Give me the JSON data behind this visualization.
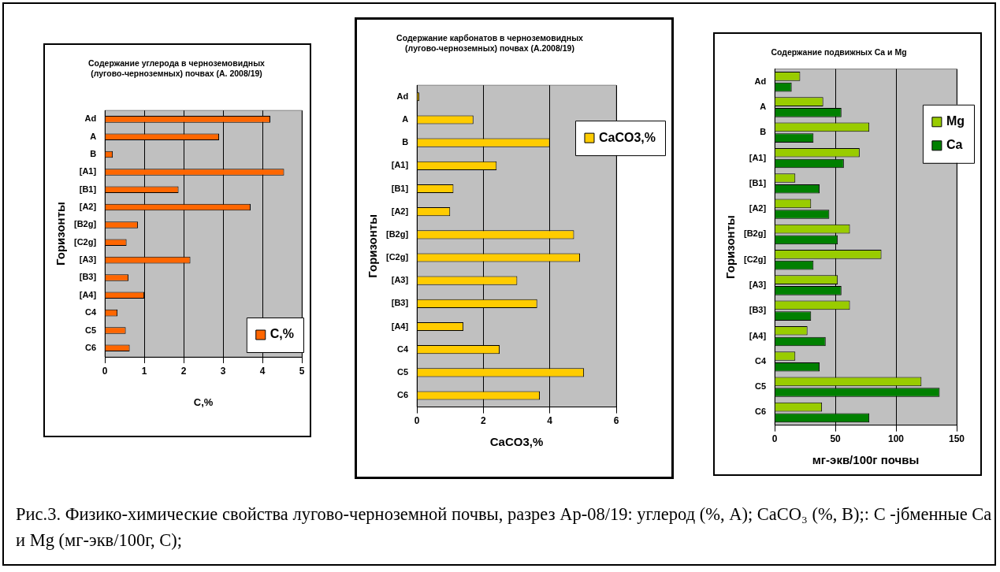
{
  "chart_data": [
    {
      "type": "bar",
      "orientation": "horizontal",
      "title": [
        "Содержание углерода в черноземовидных",
        "(лугово-черноземных) почвах (А. 2008/19)"
      ],
      "xlabel": "C,%",
      "ylabel": "Горизонты",
      "categories": [
        "Ad",
        "A",
        "B",
        "[A1]",
        "[B1]",
        "[A2]",
        "[B2g]",
        "[C2g]",
        "[A3]",
        "[B3]",
        "[A4]",
        "C4",
        "C5",
        "C6"
      ],
      "series": [
        {
          "name": "C,%",
          "color": "#ff6600",
          "values": [
            4.2,
            2.9,
            0.2,
            4.55,
            1.87,
            3.7,
            0.84,
            0.55,
            2.17,
            0.6,
            1.0,
            0.32,
            0.53,
            0.63
          ]
        }
      ],
      "xlim": [
        0,
        5
      ],
      "xticks": [
        0,
        1,
        2,
        3,
        4,
        5
      ],
      "grid": "x",
      "legend": "bottom right",
      "annotations": [
        "Рис.3. Физико-химические свойства лугово-черноземной почвы, разрез Ар-08/19: углерод (%, А); CaCO₃ (%, В);: С -jбменные Са и Mg (мг-экв/100г, С);"
      ]
    },
    {
      "type": "bar",
      "orientation": "horizontal",
      "title": [
        "Содержание карбонатов в черноземовидных",
        "(лугово-черноземных) почвах (А.2008/19)"
      ],
      "xlabel": "CaCO3,%",
      "ylabel": "Горизонты",
      "categories": [
        "Ad",
        "A",
        "B",
        "[A1]",
        "[B1]",
        "[A2]",
        "[B2g]",
        "[C2g]",
        "[A3]",
        "[B3]",
        "[A4]",
        "C4",
        "C5",
        "C6"
      ],
      "series": [
        {
          "name": "CaCO3,%",
          "color": "#ffcc00",
          "values": [
            0.07,
            1.7,
            4.0,
            2.4,
            1.1,
            1.0,
            4.73,
            4.91,
            3.02,
            3.62,
            1.4,
            2.49,
            5.03,
            3.7
          ]
        }
      ],
      "xlim": [
        0,
        6
      ],
      "xticks": [
        0,
        2,
        4,
        6
      ],
      "grid": "x",
      "legend": "top right"
    },
    {
      "type": "bar",
      "orientation": "horizontal",
      "title": "Содержание подвижных Ca и Mg",
      "xlabel": "мг-экв/100г почвы",
      "ylabel": "Горизонты",
      "categories": [
        "Ad",
        "A",
        "B",
        "[A1]",
        "[B1]",
        "[A2]",
        "[B2g]",
        "[C2g]",
        "[A3]",
        "[B3]",
        "[A4]",
        "C4",
        "C5",
        "C6"
      ],
      "series": [
        {
          "name": "Mg",
          "color": "#99cc00",
          "values": [
            21,
            40,
            78,
            70,
            17,
            30,
            62,
            88,
            52,
            62,
            27,
            17,
            121,
            39
          ]
        },
        {
          "name": "Ca",
          "color": "#008000",
          "values": [
            14,
            55,
            32,
            57,
            37,
            45,
            52,
            32,
            55,
            30,
            42,
            37,
            136,
            78
          ]
        }
      ],
      "xlim": [
        0,
        150
      ],
      "xticks": [
        0,
        50,
        100,
        150
      ],
      "grid": "x",
      "legend": "top right"
    }
  ]
}
